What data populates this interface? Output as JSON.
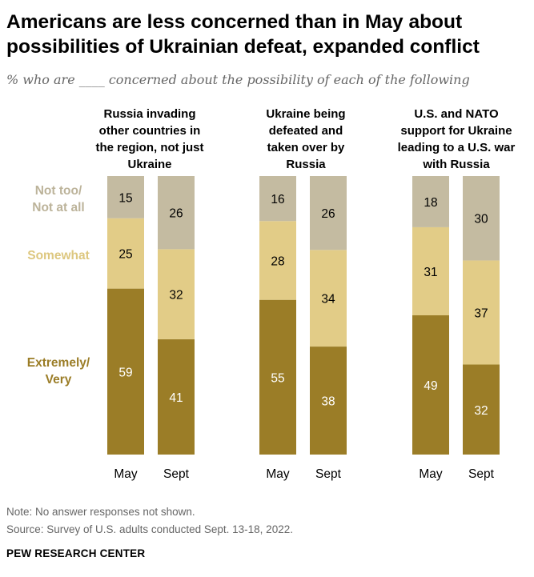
{
  "title": "Americans are less concerned than in May about possibilities of Ukrainian defeat, expanded conflict",
  "subtitle": "% who are ____ concerned about the possibility of each of the following",
  "colors": {
    "low": "#C4BBA1",
    "mid": "#E2CC87",
    "high": "#9B7D27",
    "low_label": "#BCB39A",
    "mid_label": "#DDC77F",
    "high_label": "#9B7D27"
  },
  "chart_data": {
    "type": "bar",
    "stacked": true,
    "categories": [
      "May",
      "Sept"
    ],
    "legend": {
      "low": "Not too/ Not at all",
      "mid": "Somewhat",
      "high": "Extremely/ Very"
    },
    "panels": [
      {
        "title": "Russia invading other countries in the region, not just Ukraine",
        "series": [
          {
            "name": "Extremely/ Very",
            "values": [
              59,
              41
            ]
          },
          {
            "name": "Somewhat",
            "values": [
              25,
              32
            ]
          },
          {
            "name": "Not too/ Not at all",
            "values": [
              15,
              26
            ]
          }
        ]
      },
      {
        "title": "Ukraine being defeated and taken over by Russia",
        "series": [
          {
            "name": "Extremely/ Very",
            "values": [
              55,
              38
            ]
          },
          {
            "name": "Somewhat",
            "values": [
              28,
              34
            ]
          },
          {
            "name": "Not too/ Not at all",
            "values": [
              16,
              26
            ]
          }
        ]
      },
      {
        "title": "U.S. and NATO support for Ukraine leading to a U.S. war with Russia",
        "series": [
          {
            "name": "Extremely/ Very",
            "values": [
              49,
              32
            ]
          },
          {
            "name": "Somewhat",
            "values": [
              31,
              37
            ]
          },
          {
            "name": "Not too/ Not at all",
            "values": [
              18,
              30
            ]
          }
        ]
      }
    ]
  },
  "note": "Note: No answer responses not shown.",
  "source": "Source: Survey of U.S. adults conducted Sept. 13-18, 2022.",
  "footer": "PEW RESEARCH CENTER"
}
